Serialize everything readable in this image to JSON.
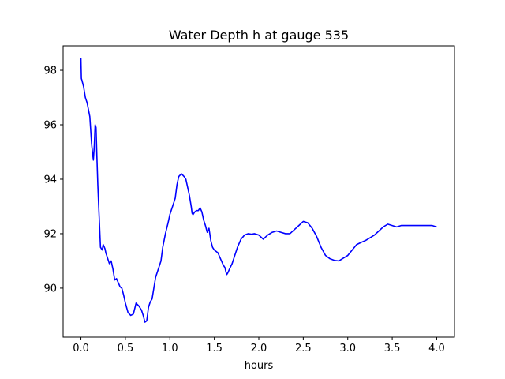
{
  "chart_data": {
    "type": "line",
    "title": "Water Depth h at gauge 535",
    "xlabel": "hours",
    "ylabel": "",
    "xlim": [
      -0.2,
      4.2
    ],
    "ylim": [
      88.2,
      98.9
    ],
    "xticks": [
      0.0,
      0.5,
      1.0,
      1.5,
      2.0,
      2.5,
      3.0,
      3.5,
      4.0
    ],
    "xtick_labels": [
      "0.0",
      "0.5",
      "1.0",
      "1.5",
      "2.0",
      "2.5",
      "3.0",
      "3.5",
      "4.0"
    ],
    "yticks": [
      90,
      92,
      94,
      96,
      98
    ],
    "ytick_labels": [
      "90",
      "92",
      "94",
      "96",
      "98"
    ],
    "grid": false,
    "series": [
      {
        "color": "#0000ff",
        "x": [
          0.0,
          0.005,
          0.01,
          0.03,
          0.05,
          0.07,
          0.1,
          0.12,
          0.14,
          0.15,
          0.16,
          0.17,
          0.18,
          0.19,
          0.2,
          0.22,
          0.24,
          0.25,
          0.27,
          0.28,
          0.3,
          0.32,
          0.34,
          0.36,
          0.38,
          0.4,
          0.42,
          0.44,
          0.46,
          0.48,
          0.5,
          0.53,
          0.56,
          0.59,
          0.62,
          0.65,
          0.68,
          0.7,
          0.72,
          0.74,
          0.76,
          0.78,
          0.8,
          0.82,
          0.84,
          0.86,
          0.88,
          0.9,
          0.92,
          0.95,
          0.98,
          1.0,
          1.03,
          1.06,
          1.08,
          1.1,
          1.13,
          1.16,
          1.18,
          1.2,
          1.22,
          1.24,
          1.25,
          1.26,
          1.27,
          1.28,
          1.3,
          1.32,
          1.34,
          1.36,
          1.38,
          1.4,
          1.42,
          1.44,
          1.46,
          1.48,
          1.5,
          1.52,
          1.54,
          1.56,
          1.58,
          1.6,
          1.62,
          1.63,
          1.64,
          1.65,
          1.67,
          1.7,
          1.73,
          1.76,
          1.8,
          1.84,
          1.88,
          1.92,
          1.95,
          2.0,
          2.05,
          2.1,
          2.15,
          2.2,
          2.25,
          2.3,
          2.35,
          2.4,
          2.45,
          2.5,
          2.55,
          2.6,
          2.65,
          2.7,
          2.75,
          2.8,
          2.85,
          2.9,
          2.95,
          3.0,
          3.05,
          3.1,
          3.15,
          3.2,
          3.25,
          3.3,
          3.35,
          3.4,
          3.45,
          3.5,
          3.55,
          3.6,
          3.65,
          3.7,
          3.75,
          3.8,
          3.85,
          3.9,
          3.95,
          4.0
        ],
        "y": [
          98.45,
          97.7,
          97.65,
          97.4,
          97.0,
          96.8,
          96.3,
          95.3,
          94.7,
          95.2,
          96.0,
          95.9,
          94.8,
          93.8,
          93.0,
          91.5,
          91.4,
          91.6,
          91.45,
          91.3,
          91.1,
          90.9,
          91.0,
          90.7,
          90.3,
          90.35,
          90.2,
          90.05,
          90.0,
          89.75,
          89.45,
          89.1,
          89.0,
          89.05,
          89.45,
          89.35,
          89.2,
          89.0,
          88.75,
          88.8,
          89.3,
          89.5,
          89.6,
          90.0,
          90.4,
          90.6,
          90.8,
          91.0,
          91.5,
          92.0,
          92.4,
          92.7,
          93.0,
          93.3,
          93.8,
          94.1,
          94.2,
          94.1,
          94.0,
          93.7,
          93.4,
          93.0,
          92.75,
          92.7,
          92.75,
          92.8,
          92.85,
          92.85,
          92.95,
          92.8,
          92.5,
          92.3,
          92.05,
          92.2,
          91.75,
          91.5,
          91.4,
          91.35,
          91.3,
          91.15,
          91.0,
          90.85,
          90.75,
          90.6,
          90.5,
          90.55,
          90.7,
          90.9,
          91.2,
          91.5,
          91.8,
          91.95,
          92.0,
          91.98,
          92.0,
          91.95,
          91.8,
          91.95,
          92.05,
          92.1,
          92.05,
          92.0,
          92.0,
          92.15,
          92.3,
          92.45,
          92.4,
          92.2,
          91.9,
          91.5,
          91.2,
          91.08,
          91.02,
          91.0,
          91.1,
          91.2,
          91.4,
          91.6,
          91.68,
          91.75,
          91.85,
          91.95,
          92.1,
          92.25,
          92.35,
          92.3,
          92.25,
          92.3,
          92.3,
          92.3,
          92.3,
          92.3,
          92.3,
          92.3,
          92.3,
          92.25
        ]
      }
    ]
  }
}
